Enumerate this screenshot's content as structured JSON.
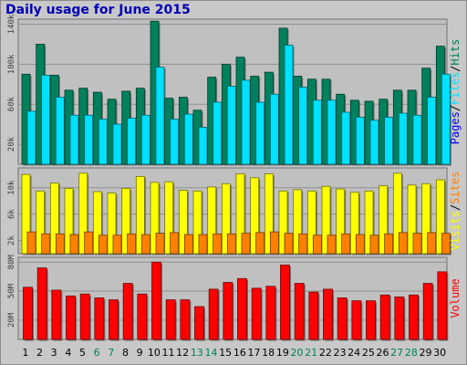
{
  "chart_data": {
    "type": "bar",
    "title": "Daily usage for June 2015",
    "categories": [
      "1",
      "2",
      "3",
      "4",
      "5",
      "6",
      "7",
      "8",
      "9",
      "10",
      "11",
      "12",
      "13",
      "14",
      "15",
      "16",
      "17",
      "18",
      "19",
      "20",
      "21",
      "22",
      "23",
      "24",
      "25",
      "26",
      "27",
      "28",
      "29",
      "30"
    ],
    "weekend_days": [
      "6",
      "7",
      "13",
      "14",
      "20",
      "21",
      "27",
      "28"
    ],
    "panels": [
      {
        "name": "pages-files-hits",
        "ylabel_parts": [
          "Pages",
          "Files",
          "Hits"
        ],
        "yticks": [
          20000,
          60000,
          100000,
          140000
        ],
        "ytick_labels": [
          "20k",
          "60k",
          "100k",
          "140k"
        ],
        "ylim": [
          0,
          145000
        ],
        "series": [
          {
            "name": "Hits",
            "color": "#00805c",
            "values": [
              90000,
              120000,
              89000,
              74000,
              76000,
              72000,
              65000,
              73000,
              76000,
              143000,
              66000,
              67000,
              54000,
              87000,
              100000,
              107000,
              88000,
              92000,
              136000,
              88000,
              85000,
              85000,
              70000,
              64000,
              63000,
              65000,
              74000,
              74000,
              96000,
              118000
            ]
          },
          {
            "name": "Files",
            "color": "#00e0ff",
            "values": [
              53000,
              89000,
              67000,
              49000,
              49000,
              45000,
              40000,
              46000,
              49000,
              97000,
              45000,
              50000,
              37000,
              62000,
              78000,
              84000,
              62000,
              70000,
              119000,
              77000,
              64000,
              64000,
              52000,
              47000,
              44000,
              47000,
              51000,
              49000,
              67000,
              90000
            ]
          },
          {
            "name": "Pages",
            "color": "#0000ff",
            "values": []
          }
        ]
      },
      {
        "name": "visits-sites",
        "ylabel_parts": [
          "Visits",
          "Sites"
        ],
        "yticks": [
          2000,
          6000,
          10000
        ],
        "ytick_labels": [
          "2k",
          "6k",
          "10k"
        ],
        "ylim": [
          0,
          13000
        ],
        "series": [
          {
            "name": "Visits",
            "color": "#ffff00",
            "values": [
              12000,
              9500,
              10700,
              9900,
              12200,
              9400,
              9200,
              9900,
              11700,
              10800,
              10900,
              9600,
              9500,
              10100,
              10600,
              12100,
              11500,
              12100,
              9500,
              9700,
              9500,
              10200,
              9800,
              9300,
              9500,
              10300,
              12200,
              10400,
              10600,
              11200
            ]
          },
          {
            "name": "Sites",
            "color": "#ff8000",
            "values": [
              3300,
              3000,
              3000,
              2900,
              3300,
              2800,
              2800,
              3000,
              2900,
              3100,
              3200,
              2900,
              2900,
              3000,
              3000,
              3100,
              3200,
              3300,
              3100,
              3000,
              2800,
              2800,
              3000,
              2900,
              2800,
              3000,
              3200,
              3100,
              3200,
              3100
            ]
          }
        ]
      },
      {
        "name": "volume",
        "ylabel_parts": [
          "Volume"
        ],
        "yticks": [
          20000000,
          50000000,
          80000000
        ],
        "ytick_labels": [
          "20M",
          "50M",
          "80M"
        ],
        "ylim": [
          0,
          85000000
        ],
        "series": [
          {
            "name": "Volume",
            "color": "#ff0000",
            "values": [
              54000000,
              74000000,
              51000000,
              45000000,
              47000000,
              43000000,
              41000000,
              58000000,
              47000000,
              80000000,
              41000000,
              41000000,
              34000000,
              52000000,
              59000000,
              63000000,
              53000000,
              55000000,
              77000000,
              58000000,
              49000000,
              52000000,
              43000000,
              40000000,
              40000000,
              46000000,
              44000000,
              46000000,
              58000000,
              70000000
            ]
          }
        ]
      }
    ]
  }
}
